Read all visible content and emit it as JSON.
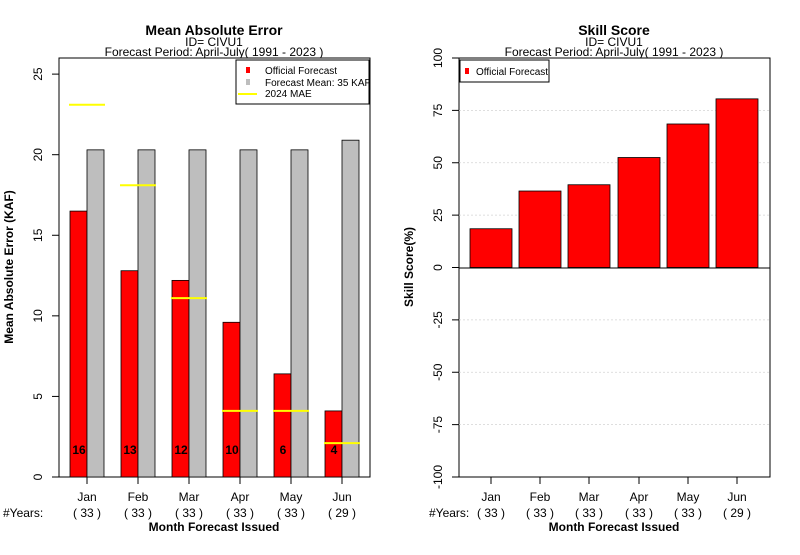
{
  "chart_data": [
    {
      "type": "bar",
      "title": "Mean Absolute Error",
      "subtitle_id": "ID= CIVU1",
      "subtitle_period": "Forecast Period: April-July( 1991 - 2023 )",
      "xlabel": "Month Forecast Issued",
      "ylabel": "Mean Absolute Error (KAF)",
      "ylim": [
        0,
        26
      ],
      "yticks": [
        "0",
        "5",
        "10",
        "15",
        "20",
        "25"
      ],
      "ytick_values": [
        0,
        5,
        10,
        15,
        20,
        25
      ],
      "categories": [
        "Jan",
        "Feb",
        "Mar",
        "Apr",
        "May",
        "Jun"
      ],
      "years_prefix": "#Years:",
      "years": [
        "( 33 )",
        "( 33 )",
        "( 33 )",
        "( 33 )",
        "( 33 )",
        "( 29 )"
      ],
      "series": [
        {
          "name": "Official Forecast",
          "values": [
            16.5,
            12.8,
            12.2,
            9.6,
            6.4,
            4.1
          ],
          "color": "#ff0000"
        },
        {
          "name": "Forecast Mean: 35 KAF",
          "values": [
            20.3,
            20.3,
            20.3,
            20.3,
            20.3,
            20.9
          ],
          "color": "#bebebe"
        },
        {
          "name": " 2024  MAE",
          "values": [
            23.1,
            18.1,
            11.1,
            4.1,
            4.1,
            2.1
          ],
          "color": "#ffff00"
        }
      ],
      "bar_labels": [
        "16",
        "13",
        "12",
        "10",
        "6",
        "4"
      ],
      "legend_position": "top-right",
      "grid": false
    },
    {
      "type": "bar",
      "title": "Skill Score",
      "subtitle_id": "ID= CIVU1",
      "subtitle_period": "Forecast Period: April-July( 1991 - 2023 )",
      "xlabel": "Month Forecast Issued",
      "ylabel": "Skill Score(%)",
      "ylim": [
        -100,
        100
      ],
      "yticks": [
        "-100",
        "-75",
        "-50",
        "-25",
        "0",
        "25",
        "50",
        "75",
        "100"
      ],
      "ytick_values": [
        -100,
        -75,
        -50,
        -25,
        0,
        25,
        50,
        75,
        100
      ],
      "categories": [
        "Jan",
        "Feb",
        "Mar",
        "Apr",
        "May",
        "Jun"
      ],
      "years_prefix": "#Years:",
      "years": [
        "( 33 )",
        "( 33 )",
        "( 33 )",
        "( 33 )",
        "( 33 )",
        "( 29 )"
      ],
      "series": [
        {
          "name": "Official Forecast",
          "values": [
            18.5,
            36.5,
            39.5,
            52.5,
            68.5,
            80.5
          ],
          "color": "#ff0000"
        }
      ],
      "legend_position": "top-left",
      "grid": true
    }
  ]
}
